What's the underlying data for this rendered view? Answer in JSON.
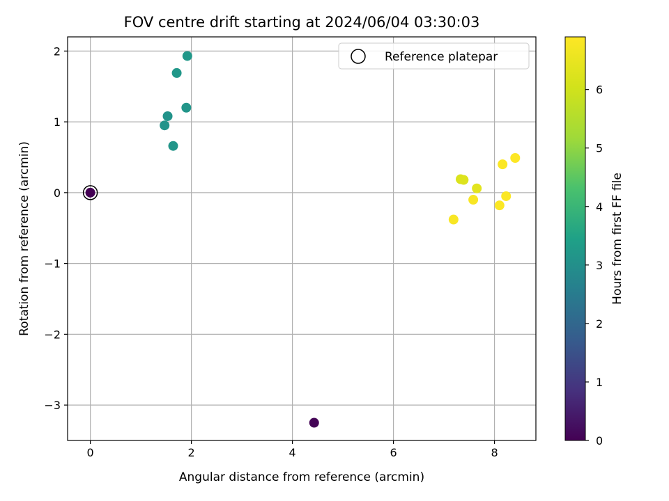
{
  "chart_data": {
    "type": "scatter",
    "title": "FOV centre drift starting at 2024/06/04 03:30:03",
    "xlabel": "Angular distance from reference (arcmin)",
    "ylabel": "Rotation from reference (arcmin)",
    "xlim": [
      -0.45,
      8.82
    ],
    "ylim": [
      -3.5,
      2.2
    ],
    "xticks": [
      0,
      2,
      4,
      6,
      8
    ],
    "yticks": [
      -3,
      -2,
      -1,
      0,
      1,
      2
    ],
    "grid": true,
    "legend": {
      "position": "top-right",
      "entries": [
        "Reference platepar"
      ]
    },
    "reference_point": {
      "x": 0,
      "y": 0
    },
    "colorbar": {
      "label": "Hours from first FF file",
      "colormap": "viridis",
      "range": [
        0,
        6.9
      ],
      "ticks": [
        0,
        1,
        2,
        3,
        4,
        5,
        6
      ]
    },
    "series": [
      {
        "points": [
          {
            "x": 0.0,
            "y": 0.0,
            "c": 0.0
          },
          {
            "x": 4.43,
            "y": -3.25,
            "c": 0.05
          },
          {
            "x": 1.47,
            "y": 0.95,
            "c": 3.1
          },
          {
            "x": 1.53,
            "y": 1.08,
            "c": 3.1
          },
          {
            "x": 1.64,
            "y": 0.66,
            "c": 3.15
          },
          {
            "x": 1.71,
            "y": 1.69,
            "c": 3.2
          },
          {
            "x": 1.9,
            "y": 1.2,
            "c": 3.15
          },
          {
            "x": 1.92,
            "y": 1.93,
            "c": 3.2
          },
          {
            "x": 7.33,
            "y": 0.19,
            "c": 6.2
          },
          {
            "x": 7.39,
            "y": 0.18,
            "c": 6.25
          },
          {
            "x": 7.65,
            "y": 0.06,
            "c": 6.35
          },
          {
            "x": 7.19,
            "y": -0.38,
            "c": 6.8
          },
          {
            "x": 7.58,
            "y": -0.1,
            "c": 6.8
          },
          {
            "x": 8.1,
            "y": -0.18,
            "c": 6.85
          },
          {
            "x": 8.16,
            "y": 0.4,
            "c": 6.85
          },
          {
            "x": 8.23,
            "y": -0.05,
            "c": 6.85
          },
          {
            "x": 8.41,
            "y": 0.49,
            "c": 6.9
          }
        ]
      }
    ]
  }
}
